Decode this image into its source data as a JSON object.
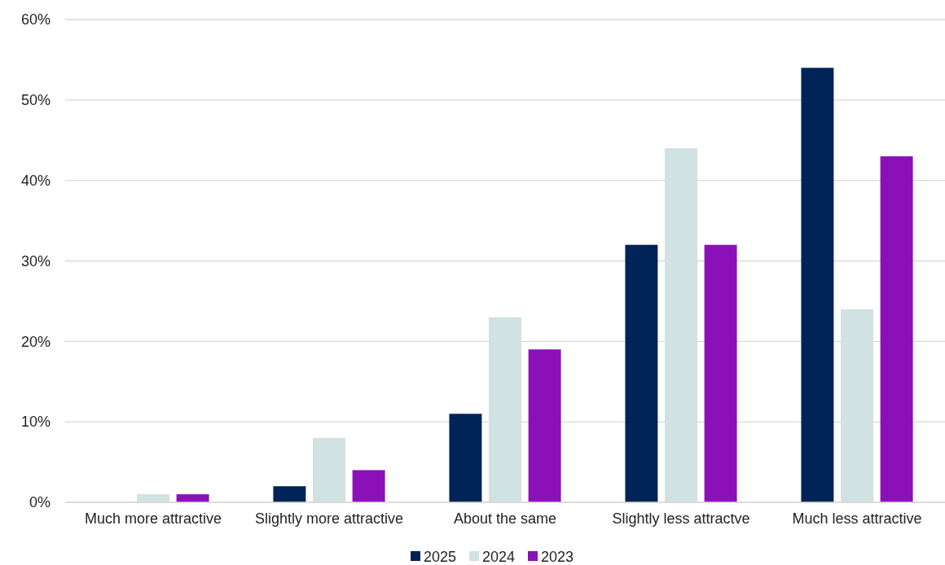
{
  "chart_data": {
    "type": "bar",
    "categories": [
      "Much more attractive",
      "Slightly more attractive",
      "About the same",
      "Slightly less attractve",
      "Much less attractive"
    ],
    "series": [
      {
        "name": "2025",
        "color": "#002458",
        "values": [
          0,
          2,
          11,
          32,
          54
        ]
      },
      {
        "name": "2024",
        "color": "#d0e2e2",
        "values": [
          1,
          8,
          23,
          44,
          24
        ]
      },
      {
        "name": "2023",
        "color": "#8b10b8",
        "values": [
          1,
          4,
          19,
          32,
          43
        ]
      }
    ],
    "ylim": [
      0,
      60
    ],
    "yticks": [
      {
        "value": 0,
        "label": "0%"
      },
      {
        "value": 10,
        "label": "10%"
      },
      {
        "value": 20,
        "label": "20%"
      },
      {
        "value": 30,
        "label": "30%"
      },
      {
        "value": 40,
        "label": "40%"
      },
      {
        "value": 50,
        "label": "50%"
      },
      {
        "value": 60,
        "label": "60%"
      }
    ],
    "grid": "y",
    "legend": "bottom"
  }
}
